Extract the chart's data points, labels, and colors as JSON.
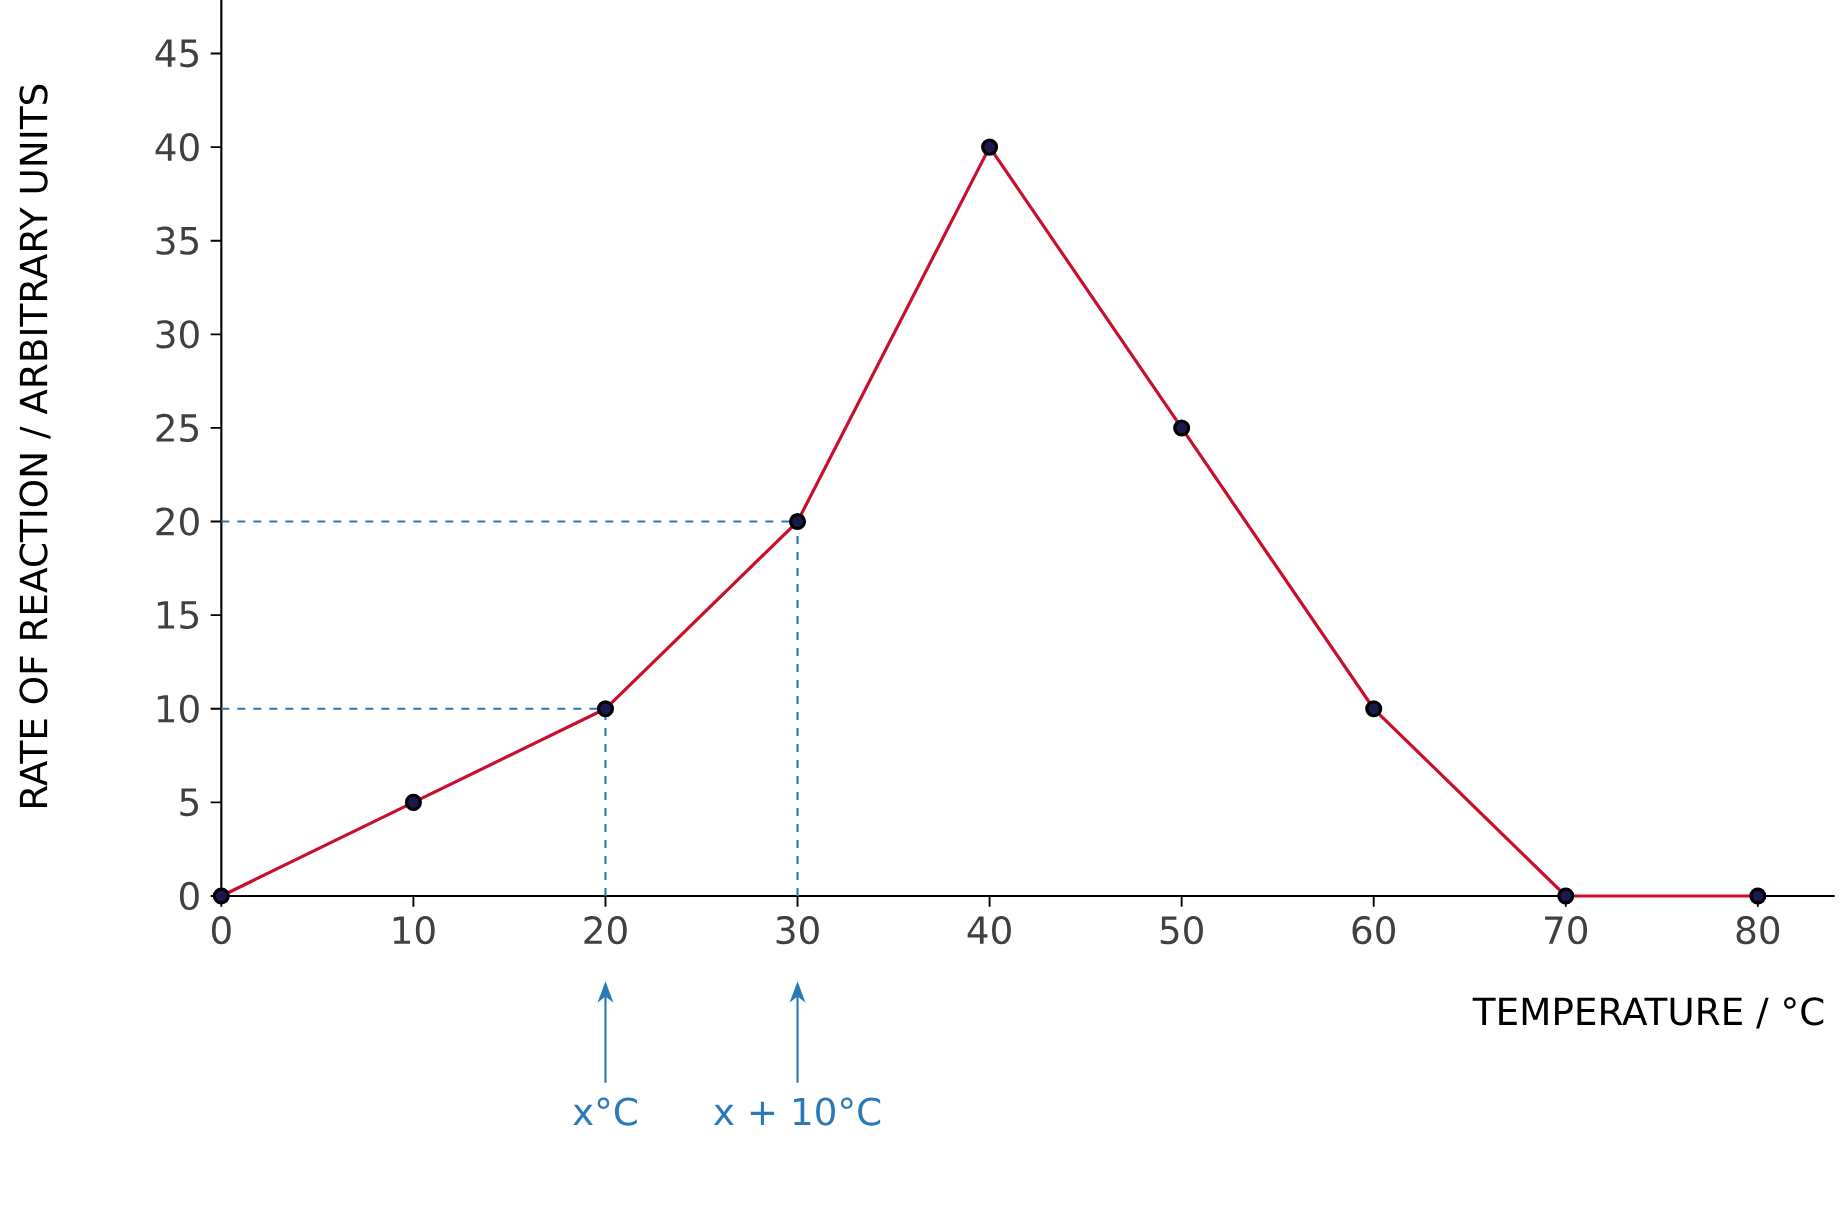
{
  "chart_data": {
    "type": "line",
    "xlabel": "TEMPERATURE / °C",
    "ylabel": "RATE OF REACTION / ARBITRARY UNITS",
    "x": [
      0,
      10,
      20,
      30,
      40,
      50,
      60,
      70,
      80
    ],
    "series": [
      {
        "color": "#c8102e",
        "values": [
          0,
          5,
          10,
          20,
          40,
          25,
          10,
          0,
          0
        ]
      }
    ],
    "marker": "circle",
    "xlim": [
      0,
      84
    ],
    "ylim": [
      0,
      48
    ],
    "xticks": [
      0,
      10,
      20,
      30,
      40,
      50,
      60,
      70,
      80
    ],
    "yticks": [
      0,
      5,
      10,
      15,
      20,
      25,
      30,
      35,
      40,
      45
    ],
    "grid": false,
    "ref_lines": [
      {
        "axis": "x",
        "value": 20,
        "color": "#2a7ab8",
        "line_style": "dashed"
      },
      {
        "axis": "x",
        "value": 30,
        "color": "#2a7ab8",
        "line_style": "dashed"
      },
      {
        "axis": "y",
        "value": 10,
        "color": "#2a7ab8",
        "line_style": "dashed"
      },
      {
        "axis": "y",
        "value": 20,
        "color": "#2a7ab8",
        "line_style": "dashed"
      }
    ],
    "annotations": [
      "x°C",
      "x + 10°C"
    ]
  }
}
